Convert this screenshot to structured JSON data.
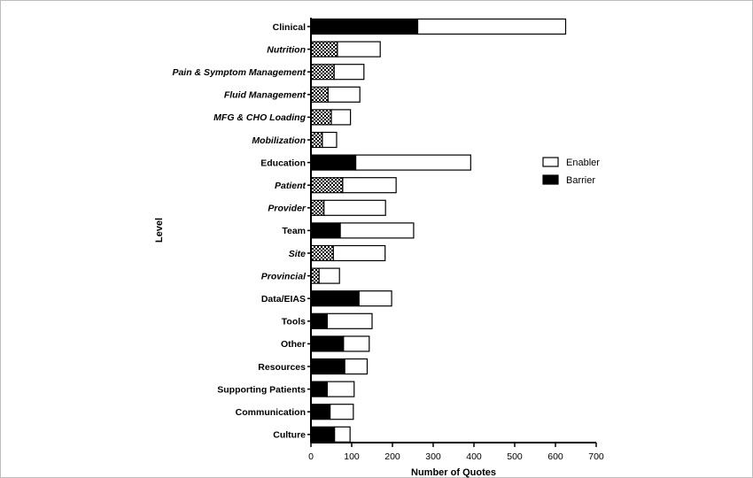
{
  "chart_data": {
    "type": "bar",
    "orientation": "horizontal",
    "stacked": true,
    "title": "",
    "xlabel": "Number of Quotes",
    "ylabel": "Level",
    "xlim": [
      0,
      700
    ],
    "xticks": [
      0,
      100,
      200,
      300,
      400,
      500,
      600,
      700
    ],
    "categories": [
      {
        "label": "Clinical",
        "sub": false,
        "barrier": 262,
        "enabler": 363
      },
      {
        "label": "Nutrition",
        "sub": true,
        "barrier": 65,
        "enabler": 105
      },
      {
        "label": "Pain & Symptom Management",
        "sub": true,
        "barrier": 57,
        "enabler": 73
      },
      {
        "label": "Fluid Management",
        "sub": true,
        "barrier": 42,
        "enabler": 78
      },
      {
        "label": "MFG & CHO Loading",
        "sub": true,
        "barrier": 50,
        "enabler": 47
      },
      {
        "label": "Mobilization",
        "sub": true,
        "barrier": 28,
        "enabler": 35
      },
      {
        "label": "Education",
        "sub": false,
        "barrier": 110,
        "enabler": 282
      },
      {
        "label": "Patient",
        "sub": true,
        "barrier": 78,
        "enabler": 131
      },
      {
        "label": "Provider",
        "sub": true,
        "barrier": 32,
        "enabler": 151
      },
      {
        "label": "Team",
        "sub": false,
        "barrier": 72,
        "enabler": 180
      },
      {
        "label": "Site",
        "sub": true,
        "barrier": 55,
        "enabler": 127
      },
      {
        "label": "Provincial",
        "sub": true,
        "barrier": 20,
        "enabler": 50
      },
      {
        "label": "Data/EIAS",
        "sub": false,
        "barrier": 118,
        "enabler": 80
      },
      {
        "label": "Tools",
        "sub": false,
        "barrier": 40,
        "enabler": 110
      },
      {
        "label": "Other",
        "sub": false,
        "barrier": 80,
        "enabler": 63
      },
      {
        "label": "Resources",
        "sub": false,
        "barrier": 83,
        "enabler": 55
      },
      {
        "label": "Supporting Patients",
        "sub": false,
        "barrier": 40,
        "enabler": 66
      },
      {
        "label": "Communication",
        "sub": false,
        "barrier": 47,
        "enabler": 57
      },
      {
        "label": "Culture",
        "sub": false,
        "barrier": 58,
        "enabler": 38
      }
    ],
    "series": [
      {
        "name": "Barrier",
        "color": "#000000",
        "sub_pattern": "checkered"
      },
      {
        "name": "Enabler",
        "color": "#ffffff"
      }
    ],
    "legend": {
      "placement": "right",
      "items": [
        "Enabler",
        "Barrier"
      ]
    },
    "grid": false
  }
}
